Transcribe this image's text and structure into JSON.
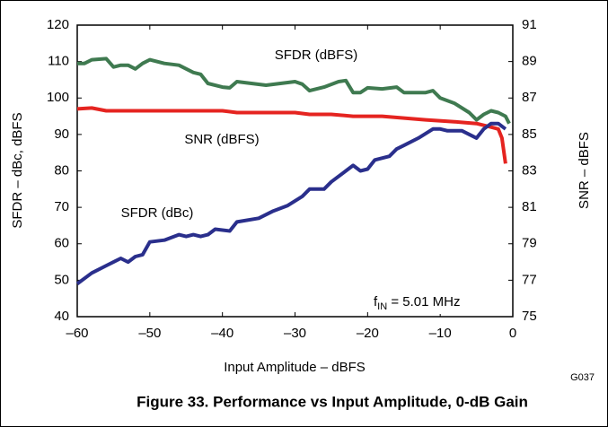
{
  "chart_data": {
    "type": "line",
    "title": "Figure 33. Performance vs Input Amplitude, 0-dB Gain",
    "figure_id": "G037",
    "xlabel": "Input Amplitude – dBFS",
    "ylabel": "SFDR – dBc, dBFS",
    "y2label": "SNR – dBFS",
    "xlim": [
      -60,
      0
    ],
    "xticks": [
      {
        "value": -60,
        "label": "–60"
      },
      {
        "value": -50,
        "label": "–50"
      },
      {
        "value": -40,
        "label": "–40"
      },
      {
        "value": -30,
        "label": "–30"
      },
      {
        "value": -20,
        "label": "–20"
      },
      {
        "value": -10,
        "label": "–10"
      },
      0
    ],
    "ylim": [
      40,
      120
    ],
    "yticks": [
      40,
      50,
      60,
      70,
      80,
      90,
      100,
      110,
      120
    ],
    "y2lim": [
      75,
      91
    ],
    "y2ticks": [
      75,
      77,
      79,
      81,
      83,
      85,
      87,
      89,
      91
    ],
    "annotation": {
      "base": "f",
      "sub": "IN",
      "rest": " = 5.01 MHz"
    },
    "series": [
      {
        "name": "SFDR (dBFS)",
        "color": "#3f7a50",
        "axis": "y",
        "x": [
          -60,
          -59,
          -58,
          -56,
          -55,
          -54,
          -53,
          -52,
          -51,
          -50,
          -48,
          -46,
          -44,
          -43,
          -42,
          -40,
          -39,
          -38,
          -36,
          -34,
          -32,
          -30,
          -29,
          -28,
          -26,
          -24,
          -23,
          -22,
          -21,
          -20,
          -18,
          -16,
          -15,
          -14,
          -12,
          -11,
          -10,
          -8,
          -6,
          -5,
          -4,
          -3,
          -2,
          -1,
          -0.5
        ],
        "values": [
          109.5,
          109.5,
          110.5,
          110.8,
          108.5,
          109,
          109,
          108,
          109.5,
          110.5,
          109.5,
          109,
          107,
          106.5,
          104,
          103,
          102.8,
          104.5,
          104,
          103.5,
          104,
          104.5,
          103.8,
          102,
          103,
          104.5,
          104.8,
          101.5,
          101.5,
          102.8,
          102.5,
          103,
          101.5,
          101.5,
          101.5,
          102,
          100,
          98.5,
          96,
          94,
          95.5,
          96.5,
          96,
          95,
          93
        ]
      },
      {
        "name": "SNR (dBFS)",
        "color": "#e52420",
        "axis": "y2",
        "x": [
          -60,
          -58,
          -56,
          -50,
          -40,
          -38,
          -30,
          -28,
          -25,
          -22,
          -18,
          -15,
          -12,
          -8,
          -5,
          -4,
          -3,
          -2,
          -1.5,
          -1
        ],
        "values": [
          86.4,
          86.45,
          86.3,
          86.3,
          86.3,
          86.2,
          86.2,
          86.1,
          86.1,
          86.0,
          86.0,
          85.9,
          85.8,
          85.7,
          85.6,
          85.5,
          85.4,
          85.3,
          84.8,
          83.4
        ]
      },
      {
        "name": "SFDR (dBc)",
        "color": "#2a2f8c",
        "axis": "y",
        "x": [
          -60,
          -58,
          -56,
          -54,
          -53,
          -52,
          -51,
          -50,
          -48,
          -46,
          -45,
          -44,
          -43,
          -42,
          -41,
          -39,
          -38,
          -35,
          -33,
          -31,
          -29,
          -28,
          -26,
          -25,
          -23,
          -22,
          -21,
          -20,
          -19,
          -17,
          -16,
          -15,
          -13,
          -11,
          -10,
          -9,
          -7,
          -5,
          -4,
          -3,
          -2,
          -1
        ],
        "values": [
          49,
          52,
          54,
          56,
          55,
          56.5,
          57,
          60.5,
          61,
          62.5,
          62,
          62.5,
          62,
          62.5,
          64,
          63.5,
          66,
          67,
          69,
          70.5,
          73,
          75,
          75,
          77,
          80,
          81.5,
          80,
          80.5,
          83,
          84,
          86,
          87,
          89,
          91.5,
          91.5,
          91,
          91,
          89,
          91.5,
          93,
          93,
          91.5
        ]
      }
    ]
  }
}
